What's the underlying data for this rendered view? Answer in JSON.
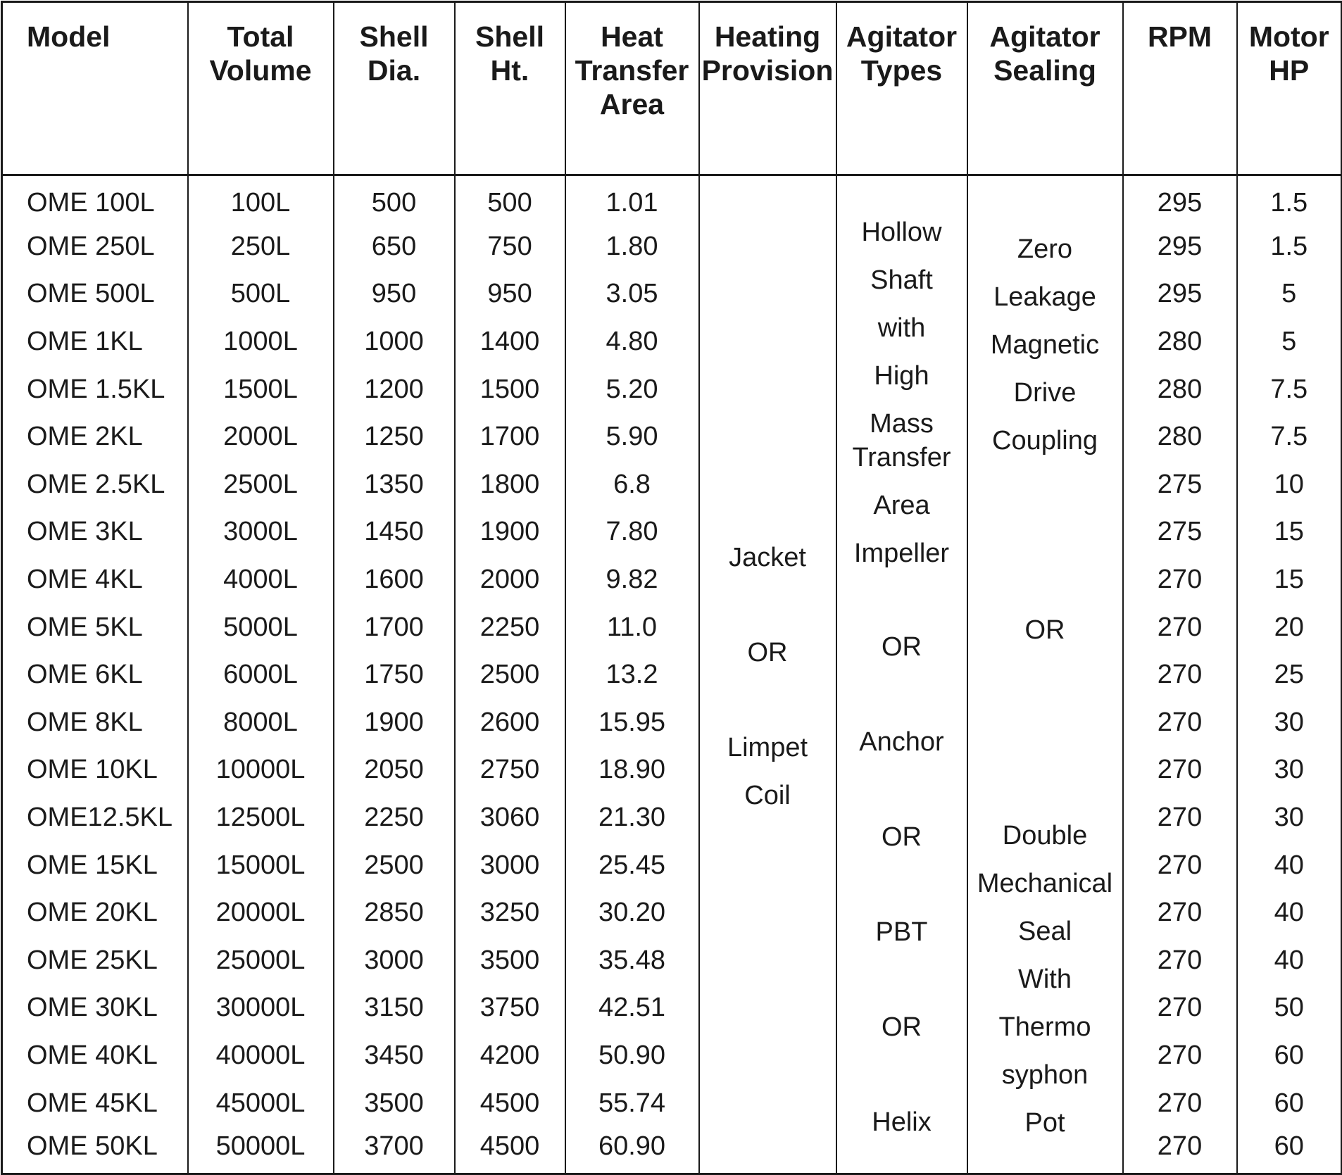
{
  "headers": {
    "model": [
      "Model"
    ],
    "total_volume": [
      "Total",
      "Volume"
    ],
    "shell_dia": [
      "Shell",
      "Dia."
    ],
    "shell_ht": [
      "Shell",
      "Ht."
    ],
    "heat_transfer_area": [
      "Heat",
      "Transfer",
      "Area"
    ],
    "heating_provision": [
      "Heating",
      "Provision"
    ],
    "agitator_types": [
      "Agitator",
      "Types"
    ],
    "agitator_sealing": [
      "Agitator",
      "Sealing"
    ],
    "rpm": [
      "RPM"
    ],
    "motor_hp": [
      "Motor",
      "HP"
    ]
  },
  "rows": [
    {
      "model": "OME 100L",
      "volume": "100L",
      "dia": "500",
      "ht": "500",
      "area": "1.01",
      "rpm": "295",
      "hp": "1.5"
    },
    {
      "model": "OME 250L",
      "volume": "250L",
      "dia": "650",
      "ht": "750",
      "area": "1.80",
      "rpm": "295",
      "hp": "1.5"
    },
    {
      "model": "OME 500L",
      "volume": "500L",
      "dia": "950",
      "ht": "950",
      "area": "3.05",
      "rpm": "295",
      "hp": "5"
    },
    {
      "model": "OME 1KL",
      "volume": "1000L",
      "dia": "1000",
      "ht": "1400",
      "area": "4.80",
      "rpm": "280",
      "hp": "5"
    },
    {
      "model": "OME 1.5KL",
      "volume": "1500L",
      "dia": "1200",
      "ht": "1500",
      "area": "5.20",
      "rpm": "280",
      "hp": "7.5"
    },
    {
      "model": "OME 2KL",
      "volume": "2000L",
      "dia": "1250",
      "ht": "1700",
      "area": "5.90",
      "rpm": "280",
      "hp": "7.5"
    },
    {
      "model": "OME 2.5KL",
      "volume": "2500L",
      "dia": "1350",
      "ht": "1800",
      "area": "6.8",
      "rpm": "275",
      "hp": "10"
    },
    {
      "model": "OME 3KL",
      "volume": "3000L",
      "dia": "1450",
      "ht": "1900",
      "area": "7.80",
      "rpm": "275",
      "hp": "15"
    },
    {
      "model": "OME 4KL",
      "volume": "4000L",
      "dia": "1600",
      "ht": "2000",
      "area": "9.82",
      "rpm": "270",
      "hp": "15"
    },
    {
      "model": "OME 5KL",
      "volume": "5000L",
      "dia": "1700",
      "ht": "2250",
      "area": "11.0",
      "rpm": "270",
      "hp": "20"
    },
    {
      "model": "OME 6KL",
      "volume": "6000L",
      "dia": "1750",
      "ht": "2500",
      "area": "13.2",
      "rpm": "270",
      "hp": "25"
    },
    {
      "model": "OME 8KL",
      "volume": "8000L",
      "dia": "1900",
      "ht": "2600",
      "area": "15.95",
      "rpm": "270",
      "hp": "30"
    },
    {
      "model": "OME 10KL",
      "volume": "10000L",
      "dia": "2050",
      "ht": "2750",
      "area": "18.90",
      "rpm": "270",
      "hp": "30"
    },
    {
      "model": "OME12.5KL",
      "volume": "12500L",
      "dia": "2250",
      "ht": "3060",
      "area": "21.30",
      "rpm": "270",
      "hp": "30"
    },
    {
      "model": "OME 15KL",
      "volume": "15000L",
      "dia": "2500",
      "ht": "3000",
      "area": "25.45",
      "rpm": "270",
      "hp": "40"
    },
    {
      "model": "OME 20KL",
      "volume": "20000L",
      "dia": "2850",
      "ht": "3250",
      "area": "30.20",
      "rpm": "270",
      "hp": "40"
    },
    {
      "model": "OME 25KL",
      "volume": "25000L",
      "dia": "3000",
      "ht": "3500",
      "area": "35.48",
      "rpm": "270",
      "hp": "40"
    },
    {
      "model": "OME 30KL",
      "volume": "30000L",
      "dia": "3150",
      "ht": "3750",
      "area": "42.51",
      "rpm": "270",
      "hp": "50"
    },
    {
      "model": "OME 40KL",
      "volume": "40000L",
      "dia": "3450",
      "ht": "4200",
      "area": "50.90",
      "rpm": "270",
      "hp": "60"
    },
    {
      "model": "OME 45KL",
      "volume": "45000L",
      "dia": "3500",
      "ht": "4500",
      "area": "55.74",
      "rpm": "270",
      "hp": "60"
    },
    {
      "model": "OME 50KL",
      "volume": "50000L",
      "dia": "3700",
      "ht": "4500",
      "area": "60.90",
      "rpm": "270",
      "hp": "60"
    }
  ],
  "heating_provision_lines": [
    "Jacket",
    "OR",
    "Limpet",
    "Coil"
  ],
  "agitator_types_lines": [
    "Hollow",
    "Shaft",
    "with",
    "High",
    "Mass",
    "Transfer",
    "Area",
    "Impeller",
    "OR",
    "Anchor",
    "OR",
    "PBT",
    "OR",
    "Helix"
  ],
  "agitator_sealing_lines": [
    "Zero",
    "Leakage",
    "Magnetic",
    "Drive",
    "Coupling",
    "OR",
    "Double",
    "Mechanical",
    "Seal",
    "With",
    "Thermo",
    "syphon",
    "Pot"
  ]
}
